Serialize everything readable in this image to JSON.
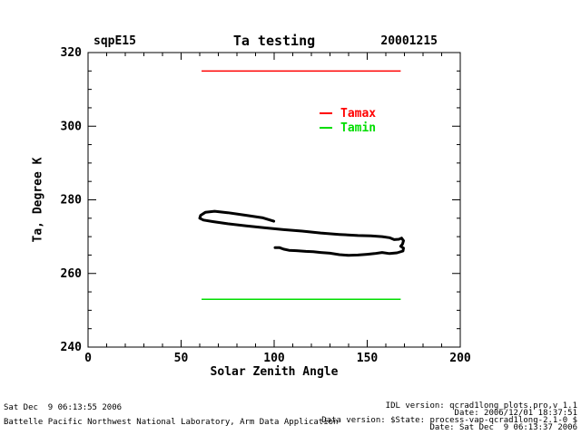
{
  "header": {
    "left_label": "sqpE15",
    "title": "Ta testing",
    "right_label": "20001215"
  },
  "chart_data": {
    "type": "line",
    "title": "Ta testing",
    "xlabel": "Solar Zenith Angle",
    "ylabel": "Ta, Degree K",
    "xlim": [
      0,
      200
    ],
    "ylim": [
      240,
      320
    ],
    "xticks": [
      0,
      50,
      100,
      150,
      200
    ],
    "yticks": [
      240,
      260,
      280,
      300,
      320
    ],
    "x_minor_step": 10,
    "y_minor_step": 5,
    "grid": false,
    "legend": {
      "position": "inside-upper-right",
      "entries": [
        {
          "label": "Tamax",
          "color": "#ff0000"
        },
        {
          "label": "Tamin",
          "color": "#00dd00"
        }
      ]
    },
    "series": [
      {
        "name": "Tamax",
        "style": "hline",
        "color": "#ff0000",
        "width": 1.5,
        "y": 315,
        "x_range": [
          61,
          168
        ]
      },
      {
        "name": "Tamin",
        "style": "hline",
        "color": "#00dd00",
        "width": 1.5,
        "y": 253,
        "x_range": [
          61,
          168
        ]
      },
      {
        "name": "Ta",
        "style": "line",
        "color": "#000000",
        "width": 3,
        "points": [
          [
            99.8,
            274.2
          ],
          [
            94,
            275.1
          ],
          [
            85,
            275.8
          ],
          [
            75,
            276.5
          ],
          [
            68,
            276.9
          ],
          [
            63,
            276.6
          ],
          [
            60.5,
            275.8
          ],
          [
            60,
            275.0
          ],
          [
            62,
            274.5
          ],
          [
            67,
            274.1
          ],
          [
            75,
            273.5
          ],
          [
            85,
            272.9
          ],
          [
            95,
            272.4
          ],
          [
            105,
            271.9
          ],
          [
            115,
            271.5
          ],
          [
            125,
            271.0
          ],
          [
            135,
            270.6
          ],
          [
            145,
            270.3
          ],
          [
            152,
            270.2
          ],
          [
            158,
            270.0
          ],
          [
            162,
            269.7
          ],
          [
            164.5,
            269.2
          ],
          [
            167,
            269.3
          ],
          [
            168.5,
            269.6
          ],
          [
            169.5,
            268.9
          ],
          [
            169.0,
            268.0
          ],
          [
            168.0,
            267.4
          ],
          [
            169.5,
            266.9
          ],
          [
            169.2,
            266.1
          ],
          [
            166,
            265.6
          ],
          [
            162,
            265.4
          ],
          [
            158,
            265.7
          ],
          [
            154,
            265.4
          ],
          [
            150,
            265.2
          ],
          [
            145,
            265.0
          ],
          [
            140,
            264.9
          ],
          [
            135,
            265.1
          ],
          [
            130,
            265.5
          ],
          [
            125,
            265.7
          ],
          [
            121,
            265.9
          ],
          [
            117,
            266.0
          ],
          [
            112,
            266.2
          ],
          [
            108,
            266.3
          ],
          [
            105,
            266.6
          ],
          [
            103,
            267.0
          ],
          [
            100.5,
            267.0
          ]
        ]
      }
    ]
  },
  "footer": {
    "left_line1": "Sat Dec  9 06:13:55 2006",
    "left_line2": "Battelle Pacific Northwest National Laboratory, Arm Data Application",
    "right_line1": "IDL version: qcrad1long_plots.pro,v 1.1",
    "right_line2": "Date: 2006/12/01 18:37:51",
    "right_line3": "Data version: $State: process-vap-qcrad1long-2.1-0 $",
    "right_line4": "Date: Sat Dec  9 06:13:37 2006"
  }
}
